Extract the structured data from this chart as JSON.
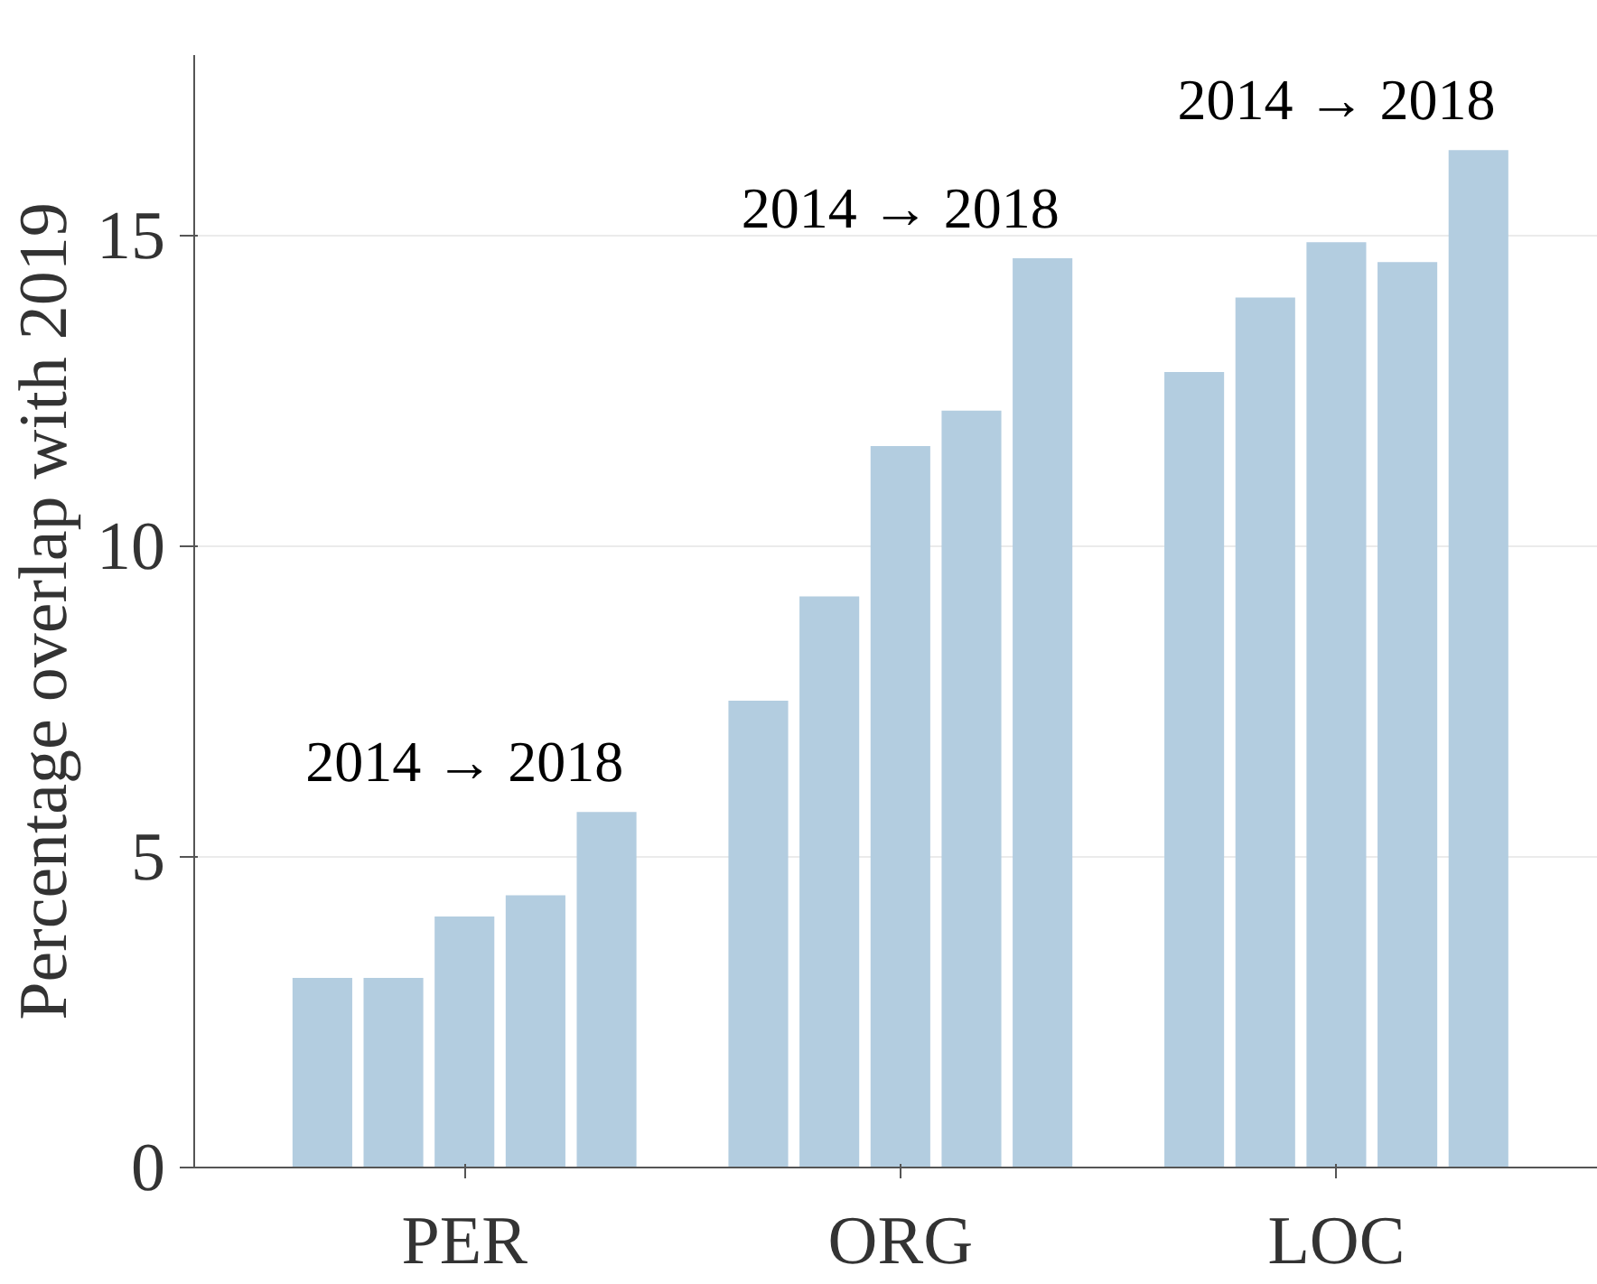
{
  "chart_data": {
    "type": "bar",
    "ylabel": "Percentage overlap with 2019",
    "categories": [
      "PER",
      "ORG",
      "LOC"
    ],
    "series": [
      {
        "color": "#b3cde0",
        "values": [
          3.05,
          7.51,
          12.8
        ]
      },
      {
        "color": "#b3cde0",
        "values": [
          3.05,
          9.19,
          14.0
        ]
      },
      {
        "color": "#b3cde0",
        "values": [
          4.04,
          11.61,
          14.89
        ]
      },
      {
        "color": "#b3cde0",
        "values": [
          4.38,
          12.18,
          14.57
        ]
      },
      {
        "color": "#b3cde0",
        "values": [
          5.72,
          14.63,
          16.37
        ]
      }
    ],
    "ylim": [
      0,
      17.9
    ],
    "yticks": [
      0,
      5,
      10,
      15
    ],
    "grid": "y",
    "annotations": [
      "2014 → 2018",
      "2014 → 2018",
      "2014 → 2018"
    ]
  }
}
